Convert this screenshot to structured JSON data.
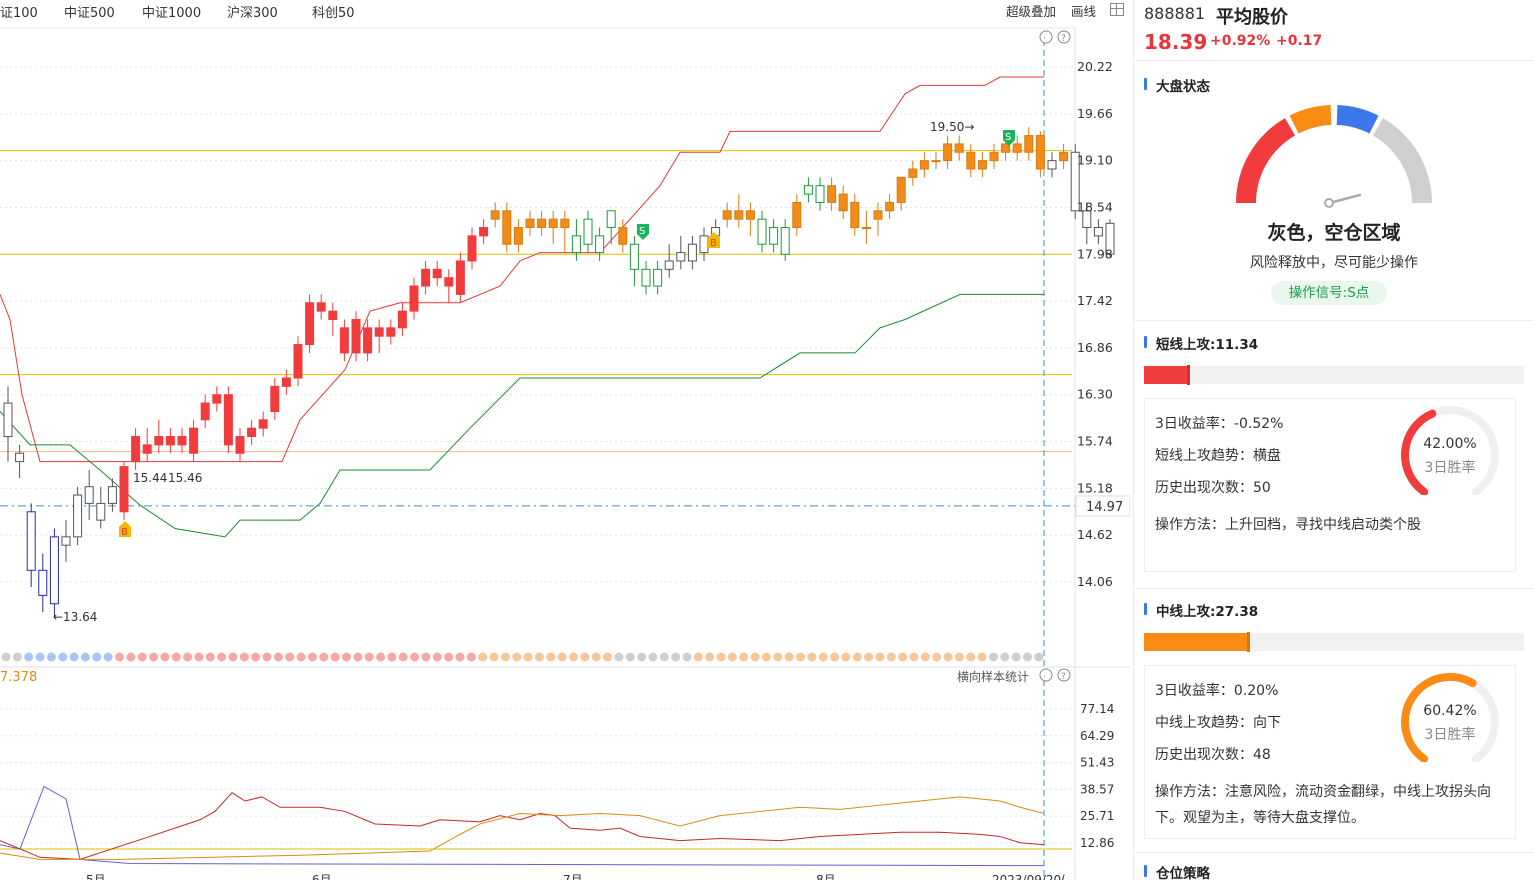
{
  "tabs": [
    "证100",
    "中证500",
    "中证1000",
    "沪深300",
    "科创50"
  ],
  "toolbar": {
    "overlay": "超级叠加",
    "draw": "画线"
  },
  "chart": {
    "y_ticks": [
      "20.22",
      "19.66",
      "19.10",
      "18.54",
      "17.98",
      "17.42",
      "16.86",
      "16.30",
      "15.74",
      "15.18",
      "14.62",
      "14.06"
    ],
    "price_tag": "14.97",
    "annotations": {
      "high": "19.50→",
      "low": "←13.64",
      "mid": "15.44",
      "mid2": "15.46"
    },
    "sub_value": "7.378",
    "sub_label": "横向样本统计",
    "sub_ticks": [
      "77.14",
      "64.29",
      "51.43",
      "38.57",
      "25.71",
      "12.86"
    ],
    "x_labels": [
      "5月",
      "6月",
      "7月",
      "8月",
      "2023/09/20("
    ],
    "signal_b": "B",
    "signal_s": "S"
  },
  "chart_data": {
    "type": "candlestick",
    "ylim": [
      13.8,
      20.4
    ],
    "y_ticks": [
      20.22,
      19.66,
      19.1,
      18.54,
      17.98,
      17.42,
      16.86,
      16.3,
      15.74,
      15.18,
      14.62,
      14.06
    ],
    "high_label": 19.5,
    "low_label": 13.64,
    "last_price": 14.97,
    "sub_ylim": [
      0,
      85
    ],
    "sub_ticks": [
      77.14,
      64.29,
      51.43,
      38.57,
      25.71,
      12.86
    ]
  },
  "side": {
    "code": "888881",
    "name": "平均股价",
    "price": "18.39",
    "pct": "+0.92%",
    "chg": "+0.17",
    "market": {
      "title": "大盘状态",
      "state": "灰色，空仓区域",
      "desc": "风险释放中，尽可能少操作",
      "signal": "操作信号:S点",
      "colors": [
        "#f03c3c",
        "#fa8c16",
        "#3c78ec",
        "#cfcfcf"
      ]
    },
    "short": {
      "title": "短线上攻:11.34",
      "fill": 0.12,
      "color": "#f03c3c",
      "ret": "3日收益率：-0.52%",
      "trend": "短线上攻趋势：横盘",
      "count": "历史出现次数：50",
      "method": "操作方法：上升回档，寻找中线启动类个股",
      "win_pct": "42.00%",
      "win_frac": 0.42,
      "win_label": "3日胜率"
    },
    "mid": {
      "title": "中线上攻:27.38",
      "fill": 0.28,
      "color": "#fa8c16",
      "ret": "3日收益率：0.20%",
      "trend": "中线上攻趋势：向下",
      "count": "历史出现次数：48",
      "method": "操作方法：注意风险，流动资金翻绿，中线上攻拐头向下。观望为主，等待大盘支撑位。",
      "win_pct": "60.42%",
      "win_frac": 0.6042,
      "win_label": "3日胜率"
    },
    "position": {
      "title": "仓位策略"
    }
  }
}
